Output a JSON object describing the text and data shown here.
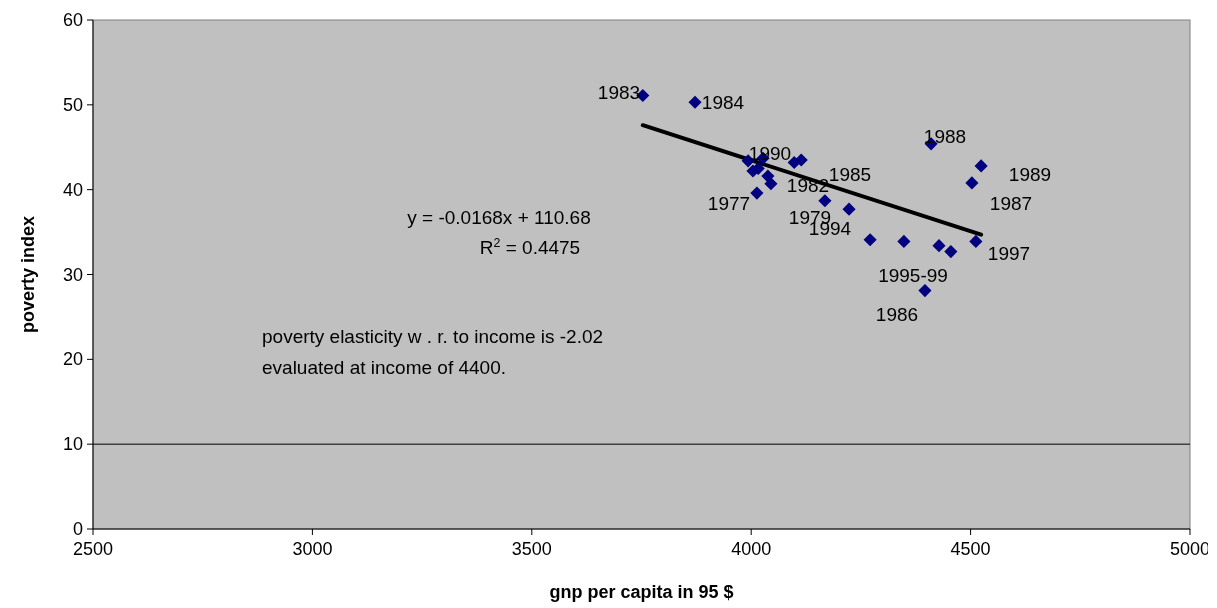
{
  "chart_data": {
    "type": "scatter",
    "xlabel": "gnp per capita in 95 $",
    "ylabel": "poverty index",
    "xlim": [
      2500,
      5000
    ],
    "xticks": [
      2500,
      3000,
      3500,
      4000,
      4500,
      5000
    ],
    "ylim": [
      0,
      60
    ],
    "yticks": [
      0,
      10,
      20,
      30,
      40,
      50,
      60
    ],
    "grid": false,
    "marker": "diamond",
    "series": [
      {
        "color": "#000080",
        "x": [
          3753,
          3872,
          3993,
          4027,
          4004,
          4016,
          4038,
          4045,
          4013,
          4098,
          4114,
          4168,
          4223,
          4271,
          4348,
          4410,
          4524,
          4503,
          4428,
          4455,
          4512,
          4396
        ],
        "values": [
          51.1,
          50.3,
          43.4,
          43.7,
          42.2,
          42.5,
          41.6,
          40.7,
          39.6,
          43.2,
          43.5,
          38.7,
          37.7,
          34.1,
          33.9,
          45.4,
          42.8,
          40.8,
          33.4,
          32.7,
          33.9,
          28.1
        ]
      },
      {
        "type": "line",
        "marker": "none",
        "color": "#000000",
        "line_style": "solid",
        "x": [
          3753,
          4524
        ],
        "values": [
          47.6,
          34.7
        ]
      }
    ],
    "ref_lines": [
      {
        "axis": "y",
        "value": 10,
        "color": "#000000"
      }
    ],
    "annotations": [
      "1983",
      "1984",
      "1990",
      "1982",
      "1985",
      "1977",
      "1979",
      "1994",
      "1988",
      "1989",
      "1987",
      "1997",
      "1995-99",
      "1986",
      "y = -0.0168x + 110.68",
      "R$^{2}$ = 0.4475",
      "poverty elasticity w . r. to income is -2.02",
      "evaluated at income of 4400."
    ]
  }
}
